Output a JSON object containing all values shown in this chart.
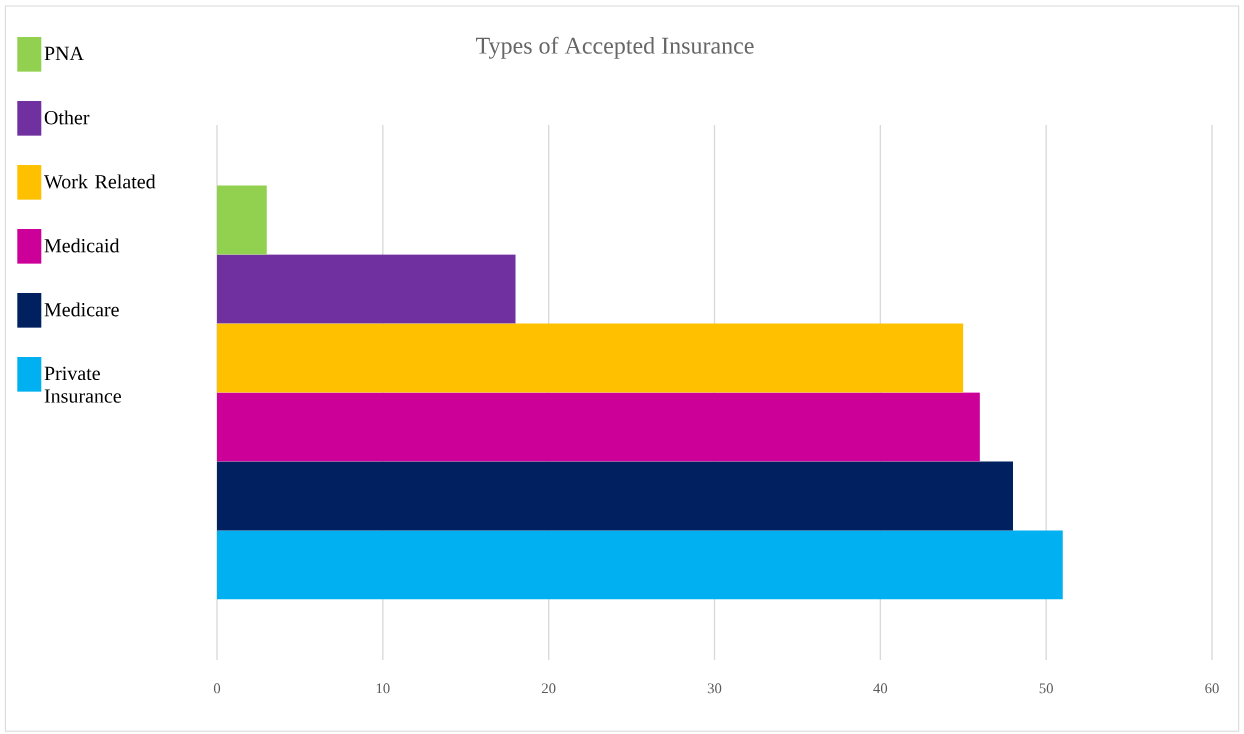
{
  "chart_data": {
    "type": "bar",
    "orientation": "horizontal",
    "title": "Types of Accepted Insurance",
    "categories": [
      null
    ],
    "series": [
      {
        "name": "Private Insurance",
        "color": "#00b0f0",
        "values": [
          51
        ]
      },
      {
        "name": "Medicare",
        "color": "#002060",
        "values": [
          48
        ]
      },
      {
        "name": "Medicaid",
        "color": "#cc0099",
        "values": [
          46
        ]
      },
      {
        "name": "Work Related",
        "color": "#ffc000",
        "values": [
          45
        ]
      },
      {
        "name": "Other",
        "color": "#7030a0",
        "values": [
          18
        ]
      },
      {
        "name": "PNA",
        "color": "#92d050",
        "values": [
          3
        ]
      }
    ],
    "xlim": [
      0,
      60
    ],
    "xticks": [
      0,
      10,
      20,
      30,
      40,
      50,
      60
    ],
    "grid": "x",
    "legend": "left",
    "tick_labels": "x"
  }
}
